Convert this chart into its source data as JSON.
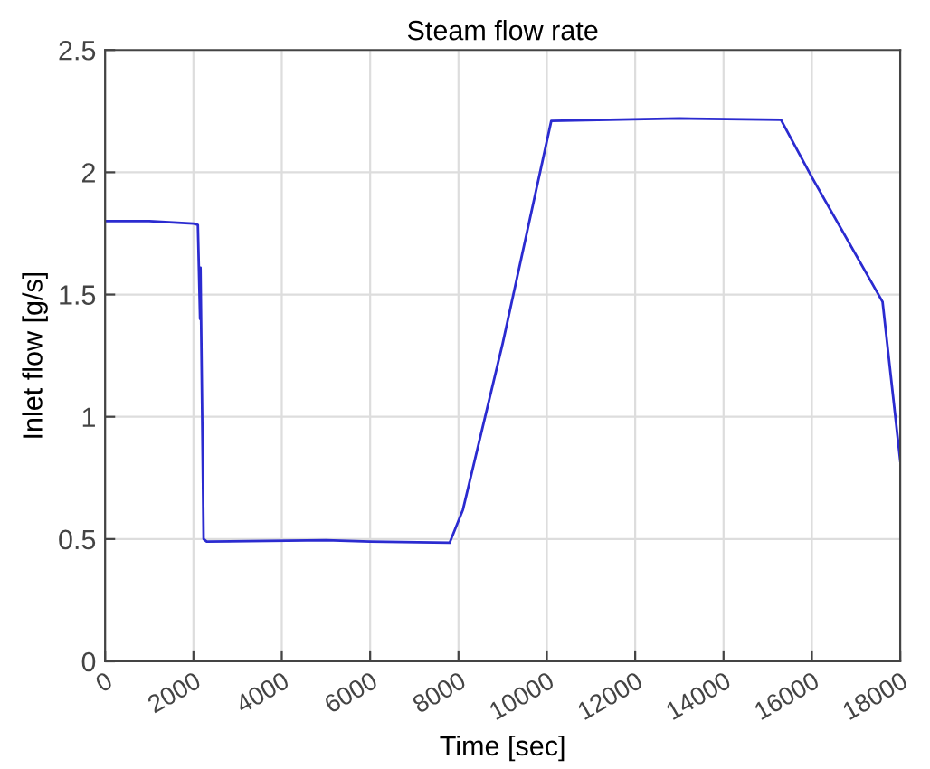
{
  "chart_data": {
    "type": "line",
    "title": "Steam flow rate",
    "xlabel": "Time [sec]",
    "ylabel": "Inlet flow [g/s]",
    "x": [
      0,
      1000,
      2000,
      2100,
      2150,
      2160,
      2230,
      2300,
      5000,
      6000,
      7800,
      8100,
      9000,
      10100,
      13000,
      15300,
      16000,
      17600,
      18000
    ],
    "series": [
      {
        "color": "#2b2bd0",
        "values": [
          1.8,
          1.8,
          1.79,
          1.785,
          1.4,
          1.61,
          0.5,
          0.49,
          0.495,
          0.49,
          0.485,
          0.62,
          1.3,
          2.21,
          2.22,
          2.215,
          1.98,
          1.47,
          0.82
        ]
      }
    ],
    "xlim": [
      0,
      18000
    ],
    "ylim": [
      0,
      2.5
    ],
    "xticks": [
      0,
      2000,
      4000,
      6000,
      8000,
      10000,
      12000,
      14000,
      16000,
      18000
    ],
    "yticks": [
      0,
      0.5,
      1,
      1.5,
      2,
      2.5
    ],
    "grid": true,
    "marker": "none",
    "line_style": "solid"
  }
}
